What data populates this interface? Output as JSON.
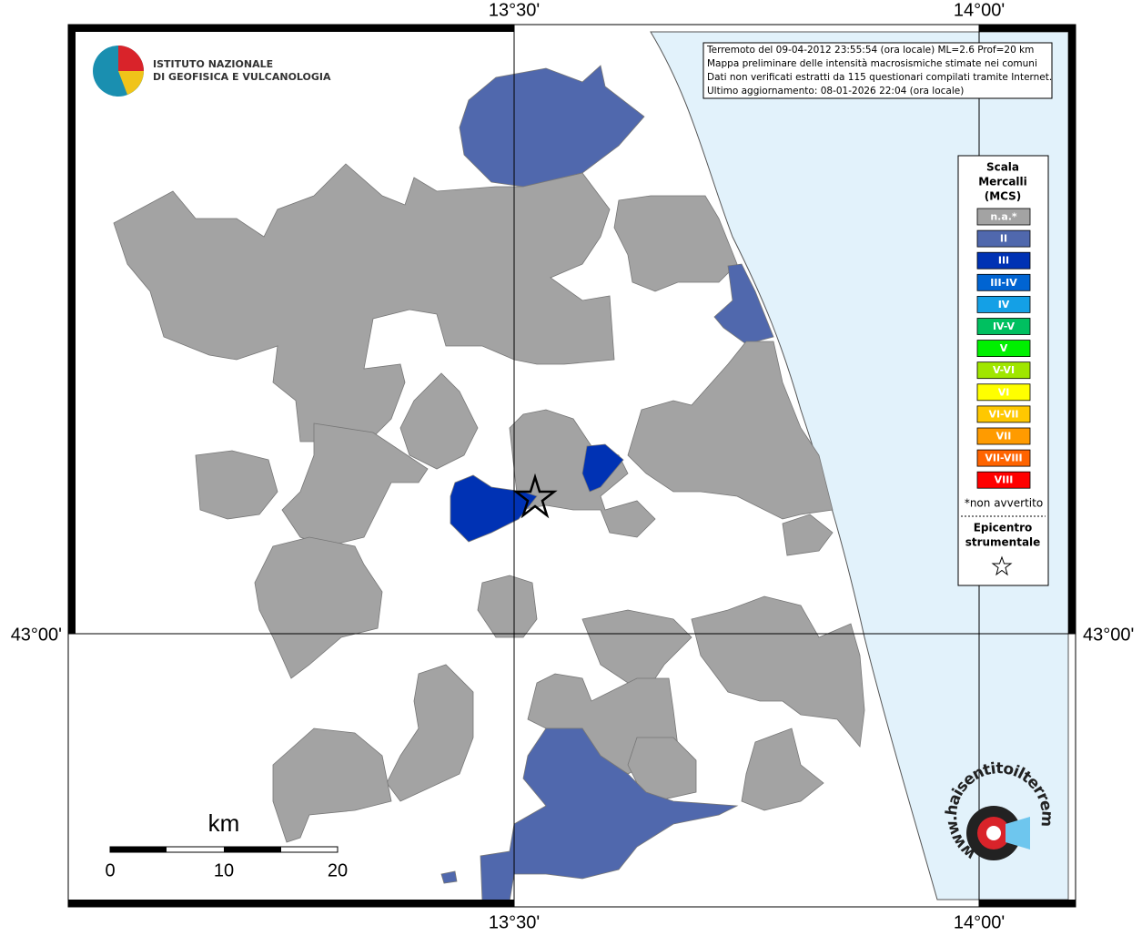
{
  "axes": {
    "top": [
      "13°30'",
      "14°00'"
    ],
    "bottom": [
      "13°30'",
      "14°00'"
    ],
    "left": [
      "43°00'"
    ],
    "right": [
      "43°00'"
    ]
  },
  "info": [
    "Terremoto del 09-04-2012 23:55:54 (ora locale) ML=2.6 Prof=20 km",
    "Mappa preliminare delle intensità macrosismiche stimate nei comuni",
    "Dati non verificati estratti da 115 questionari compilati tramite Internet.",
    "Ultimo aggiornamento: 08-01-2026 22:04 (ora locale)"
  ],
  "logo": {
    "lines": [
      "ISTITUTO NAZIONALE",
      "DI GEOFISICA E VULCANOLOGIA"
    ]
  },
  "legend": {
    "title": [
      "Scala",
      "Mercalli",
      "(MCS)"
    ],
    "items": [
      {
        "label": "n.a.*",
        "color": "#a3a3a3"
      },
      {
        "label": "II",
        "color": "#5068ad"
      },
      {
        "label": "III",
        "color": "#0032b4"
      },
      {
        "label": "III-IV",
        "color": "#0064d2"
      },
      {
        "label": "IV",
        "color": "#14a0e6"
      },
      {
        "label": "IV-V",
        "color": "#00c060"
      },
      {
        "label": "V",
        "color": "#00f000"
      },
      {
        "label": "V-VI",
        "color": "#a0e600"
      },
      {
        "label": "VI",
        "color": "#ffff00"
      },
      {
        "label": "VI-VII",
        "color": "#ffc800"
      },
      {
        "label": "VII",
        "color": "#ff9b00"
      },
      {
        "label": "VII-VIII",
        "color": "#ff6400"
      },
      {
        "label": "VIII",
        "color": "#ff0000"
      }
    ],
    "note": "*non avvertito",
    "epicenter": [
      "Epicentro",
      "strumentale"
    ]
  },
  "scale": {
    "unit": "km",
    "ticks": [
      "0",
      "10",
      "20"
    ]
  },
  "watermark": "www.haisentitoilterremoto.it"
}
